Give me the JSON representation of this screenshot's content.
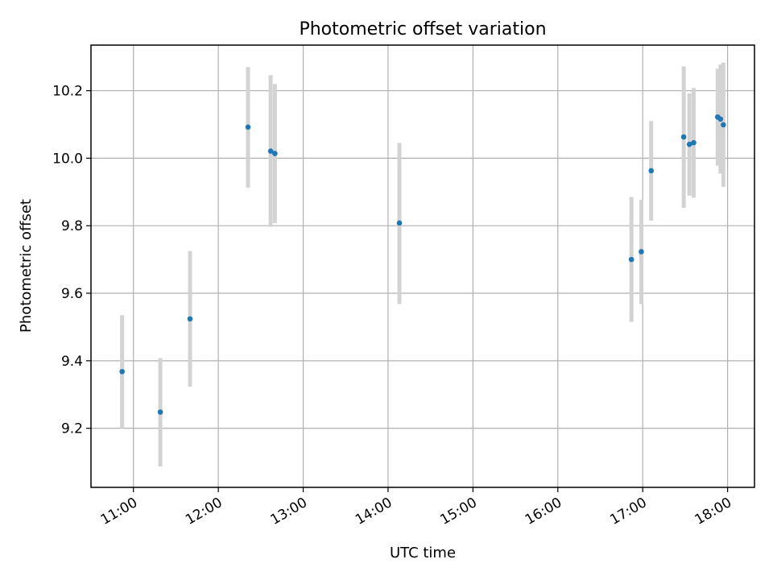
{
  "chart_data": {
    "type": "scatter",
    "title": "Photometric offset variation",
    "xlabel": "UTC time",
    "ylabel": "Photometric offset",
    "x_axis_type": "time",
    "x_ticks": [
      "11:00",
      "12:00",
      "13:00",
      "14:00",
      "15:00",
      "16:00",
      "17:00",
      "18:00"
    ],
    "y_ticks": [
      "9.2",
      "9.4",
      "9.6",
      "9.8",
      "10.0",
      "10.2"
    ],
    "xlim": [
      "10:30",
      "18:19"
    ],
    "ylim": [
      9.025,
      10.335
    ],
    "grid": true,
    "legend": "none",
    "point_color": "#1f77b4",
    "errorbar_color": "#d3d3d3",
    "points": [
      {
        "x": "10:52",
        "y": 9.368,
        "low": 9.2,
        "high": 9.535
      },
      {
        "x": "11:19",
        "y": 9.248,
        "low": 9.087,
        "high": 9.408
      },
      {
        "x": "11:40",
        "y": 9.524,
        "low": 9.323,
        "high": 9.725
      },
      {
        "x": "12:21",
        "y": 10.092,
        "low": 9.913,
        "high": 10.27
      },
      {
        "x": "12:37",
        "y": 10.021,
        "low": 9.797,
        "high": 10.246
      },
      {
        "x": "12:40",
        "y": 10.014,
        "low": 9.808,
        "high": 10.22
      },
      {
        "x": "14:08",
        "y": 9.808,
        "low": 9.568,
        "high": 10.045
      },
      {
        "x": "16:52",
        "y": 9.7,
        "low": 9.515,
        "high": 9.885
      },
      {
        "x": "16:59",
        "y": 9.723,
        "low": 9.568,
        "high": 9.877
      },
      {
        "x": "17:06",
        "y": 9.963,
        "low": 9.815,
        "high": 10.11
      },
      {
        "x": "17:29",
        "y": 10.063,
        "low": 9.853,
        "high": 10.272
      },
      {
        "x": "17:33",
        "y": 10.041,
        "low": 9.889,
        "high": 10.192
      },
      {
        "x": "17:36",
        "y": 10.046,
        "low": 9.883,
        "high": 10.208
      },
      {
        "x": "17:53",
        "y": 10.122,
        "low": 9.978,
        "high": 10.265
      },
      {
        "x": "17:55",
        "y": 10.116,
        "low": 9.954,
        "high": 10.277
      },
      {
        "x": "17:57",
        "y": 10.099,
        "low": 9.915,
        "high": 10.283
      }
    ]
  }
}
